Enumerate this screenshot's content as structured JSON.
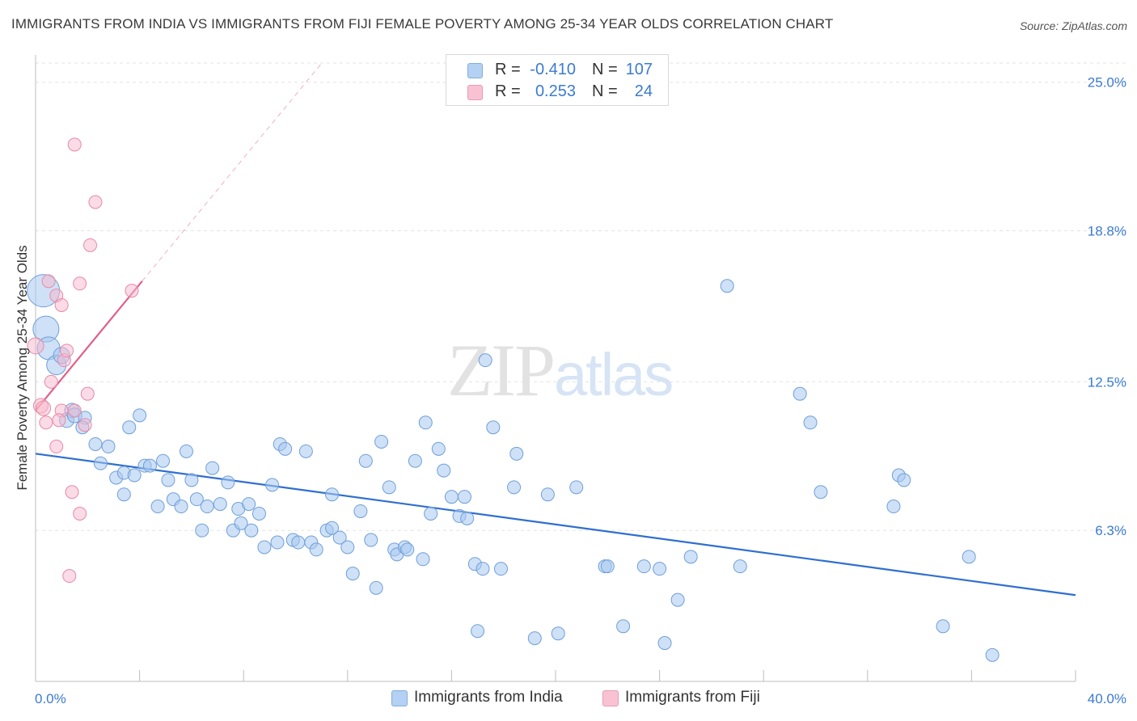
{
  "title": "IMMIGRANTS FROM INDIA VS IMMIGRANTS FROM FIJI FEMALE POVERTY AMONG 25-34 YEAR OLDS CORRELATION CHART",
  "source": "Source: ZipAtlas.com",
  "watermark": {
    "zip": "ZIP",
    "atlas": "atlas"
  },
  "legend": {
    "rows": [
      {
        "r_label": "R =",
        "r_value": "-0.410",
        "n_label": "N =",
        "n_value": "107",
        "color": "#a8c8f0"
      },
      {
        "r_label": "R =",
        "r_value": "0.253",
        "n_label": "N =",
        "n_value": "24",
        "color": "#f7b8cc"
      }
    ]
  },
  "bottom_legend": {
    "india": "Immigrants from India",
    "fiji": "Immigrants from Fiji"
  },
  "colors": {
    "india_fill": "#a8c8f0",
    "india_stroke": "#6f9fd8",
    "india_line": "#2f6fd0",
    "fiji_fill": "#f7b8cc",
    "fiji_stroke": "#e58aa8",
    "fiji_line": "#e0608a",
    "tick_text": "#3b7bd0",
    "grid": "#e3e3e3"
  },
  "chart_data": {
    "type": "scatter",
    "title": "IMMIGRANTS FROM INDIA VS IMMIGRANTS FROM FIJI FEMALE POVERTY AMONG 25-34 YEAR OLDS CORRELATION CHART",
    "xlabel": "",
    "ylabel": "Female Poverty Among 25-34 Year Olds",
    "xlim": [
      0,
      40
    ],
    "ylim": [
      0,
      25
    ],
    "x_tick_labels": [
      "0.0%",
      "40.0%"
    ],
    "y_ticks": [
      6.3,
      12.5,
      18.8,
      25.0
    ],
    "y_tick_labels": [
      "6.3%",
      "12.5%",
      "18.8%",
      "25.0%"
    ],
    "grid": "horizontal dashed",
    "series": [
      {
        "name": "Immigrants from India",
        "trend": {
          "x": [
            0,
            40
          ],
          "y": [
            9.5,
            3.6
          ]
        },
        "points": [
          {
            "x": 0.3,
            "y": 16.3,
            "s": 20
          },
          {
            "x": 0.4,
            "y": 14.7,
            "s": 16
          },
          {
            "x": 0.5,
            "y": 13.9,
            "s": 14
          },
          {
            "x": 0.8,
            "y": 13.2,
            "s": 12
          },
          {
            "x": 1.0,
            "y": 13.6,
            "s": 10
          },
          {
            "x": 1.4,
            "y": 11.3,
            "s": 9
          },
          {
            "x": 1.2,
            "y": 10.9,
            "s": 9
          },
          {
            "x": 1.5,
            "y": 11.1,
            "s": 9
          },
          {
            "x": 1.9,
            "y": 11.0,
            "s": 8
          },
          {
            "x": 1.8,
            "y": 10.6,
            "s": 8
          },
          {
            "x": 2.3,
            "y": 9.9,
            "s": 8
          },
          {
            "x": 2.5,
            "y": 9.1,
            "s": 8
          },
          {
            "x": 2.8,
            "y": 9.8,
            "s": 8
          },
          {
            "x": 3.1,
            "y": 8.5,
            "s": 8
          },
          {
            "x": 3.4,
            "y": 8.7,
            "s": 8
          },
          {
            "x": 3.4,
            "y": 7.8,
            "s": 8
          },
          {
            "x": 3.6,
            "y": 10.6,
            "s": 8
          },
          {
            "x": 3.8,
            "y": 8.6,
            "s": 8
          },
          {
            "x": 4.0,
            "y": 11.1,
            "s": 8
          },
          {
            "x": 4.2,
            "y": 9.0,
            "s": 8
          },
          {
            "x": 4.4,
            "y": 9.0,
            "s": 8
          },
          {
            "x": 4.7,
            "y": 7.3,
            "s": 8
          },
          {
            "x": 4.9,
            "y": 9.2,
            "s": 8
          },
          {
            "x": 5.1,
            "y": 8.4,
            "s": 8
          },
          {
            "x": 5.3,
            "y": 7.6,
            "s": 8
          },
          {
            "x": 5.6,
            "y": 7.3,
            "s": 8
          },
          {
            "x": 5.8,
            "y": 9.6,
            "s": 8
          },
          {
            "x": 6.0,
            "y": 8.4,
            "s": 8
          },
          {
            "x": 6.2,
            "y": 7.6,
            "s": 8
          },
          {
            "x": 6.4,
            "y": 6.3,
            "s": 8
          },
          {
            "x": 6.6,
            "y": 7.3,
            "s": 8
          },
          {
            "x": 6.8,
            "y": 8.9,
            "s": 8
          },
          {
            "x": 7.1,
            "y": 7.4,
            "s": 8
          },
          {
            "x": 7.4,
            "y": 8.3,
            "s": 8
          },
          {
            "x": 7.6,
            "y": 6.3,
            "s": 8
          },
          {
            "x": 7.8,
            "y": 7.2,
            "s": 8
          },
          {
            "x": 7.9,
            "y": 6.6,
            "s": 8
          },
          {
            "x": 8.2,
            "y": 7.4,
            "s": 8
          },
          {
            "x": 8.3,
            "y": 6.3,
            "s": 8
          },
          {
            "x": 8.6,
            "y": 7.0,
            "s": 8
          },
          {
            "x": 8.8,
            "y": 5.6,
            "s": 8
          },
          {
            "x": 9.1,
            "y": 8.2,
            "s": 8
          },
          {
            "x": 9.3,
            "y": 5.8,
            "s": 8
          },
          {
            "x": 9.4,
            "y": 9.9,
            "s": 8
          },
          {
            "x": 9.6,
            "y": 9.7,
            "s": 8
          },
          {
            "x": 9.9,
            "y": 5.9,
            "s": 8
          },
          {
            "x": 10.1,
            "y": 5.8,
            "s": 8
          },
          {
            "x": 10.4,
            "y": 9.6,
            "s": 8
          },
          {
            "x": 10.6,
            "y": 5.8,
            "s": 8
          },
          {
            "x": 10.8,
            "y": 5.5,
            "s": 8
          },
          {
            "x": 11.2,
            "y": 6.3,
            "s": 8
          },
          {
            "x": 11.4,
            "y": 7.8,
            "s": 8
          },
          {
            "x": 11.4,
            "y": 6.4,
            "s": 8
          },
          {
            "x": 11.7,
            "y": 6.0,
            "s": 8
          },
          {
            "x": 12.0,
            "y": 5.6,
            "s": 8
          },
          {
            "x": 12.2,
            "y": 4.5,
            "s": 8
          },
          {
            "x": 12.5,
            "y": 7.1,
            "s": 8
          },
          {
            "x": 12.7,
            "y": 9.2,
            "s": 8
          },
          {
            "x": 12.9,
            "y": 5.9,
            "s": 8
          },
          {
            "x": 13.1,
            "y": 3.9,
            "s": 8
          },
          {
            "x": 13.3,
            "y": 10.0,
            "s": 8
          },
          {
            "x": 13.6,
            "y": 8.1,
            "s": 8
          },
          {
            "x": 13.8,
            "y": 5.5,
            "s": 8
          },
          {
            "x": 13.9,
            "y": 5.3,
            "s": 8
          },
          {
            "x": 14.2,
            "y": 5.6,
            "s": 8
          },
          {
            "x": 14.3,
            "y": 5.5,
            "s": 8
          },
          {
            "x": 14.6,
            "y": 9.2,
            "s": 8
          },
          {
            "x": 14.9,
            "y": 5.1,
            "s": 8
          },
          {
            "x": 15.0,
            "y": 10.8,
            "s": 8
          },
          {
            "x": 15.2,
            "y": 7.0,
            "s": 8
          },
          {
            "x": 15.5,
            "y": 9.7,
            "s": 8
          },
          {
            "x": 15.7,
            "y": 8.8,
            "s": 8
          },
          {
            "x": 16.0,
            "y": 7.7,
            "s": 8
          },
          {
            "x": 16.3,
            "y": 6.9,
            "s": 8
          },
          {
            "x": 16.5,
            "y": 7.7,
            "s": 8
          },
          {
            "x": 16.6,
            "y": 6.8,
            "s": 8
          },
          {
            "x": 16.9,
            "y": 4.9,
            "s": 8
          },
          {
            "x": 17.0,
            "y": 2.1,
            "s": 8
          },
          {
            "x": 17.2,
            "y": 4.7,
            "s": 8
          },
          {
            "x": 17.3,
            "y": 13.4,
            "s": 8
          },
          {
            "x": 17.6,
            "y": 10.6,
            "s": 8
          },
          {
            "x": 17.9,
            "y": 4.7,
            "s": 8
          },
          {
            "x": 18.4,
            "y": 8.1,
            "s": 8
          },
          {
            "x": 18.5,
            "y": 9.5,
            "s": 8
          },
          {
            "x": 19.2,
            "y": 1.8,
            "s": 8
          },
          {
            "x": 19.7,
            "y": 7.8,
            "s": 8
          },
          {
            "x": 20.1,
            "y": 2.0,
            "s": 8
          },
          {
            "x": 20.8,
            "y": 8.1,
            "s": 8
          },
          {
            "x": 21.9,
            "y": 4.8,
            "s": 8
          },
          {
            "x": 22.0,
            "y": 4.8,
            "s": 8
          },
          {
            "x": 22.6,
            "y": 2.3,
            "s": 8
          },
          {
            "x": 23.4,
            "y": 4.8,
            "s": 8
          },
          {
            "x": 24.0,
            "y": 4.7,
            "s": 8
          },
          {
            "x": 24.2,
            "y": 1.6,
            "s": 8
          },
          {
            "x": 24.7,
            "y": 3.4,
            "s": 8
          },
          {
            "x": 25.2,
            "y": 5.2,
            "s": 8
          },
          {
            "x": 26.6,
            "y": 16.5,
            "s": 8
          },
          {
            "x": 27.1,
            "y": 4.8,
            "s": 8
          },
          {
            "x": 29.4,
            "y": 12.0,
            "s": 8
          },
          {
            "x": 29.8,
            "y": 10.8,
            "s": 8
          },
          {
            "x": 30.2,
            "y": 7.9,
            "s": 8
          },
          {
            "x": 33.0,
            "y": 7.3,
            "s": 8
          },
          {
            "x": 33.2,
            "y": 8.6,
            "s": 8
          },
          {
            "x": 33.4,
            "y": 8.4,
            "s": 8
          },
          {
            "x": 34.9,
            "y": 2.3,
            "s": 8
          },
          {
            "x": 35.9,
            "y": 5.2,
            "s": 8
          },
          {
            "x": 36.8,
            "y": 1.1,
            "s": 8
          }
        ]
      },
      {
        "name": "Immigrants from Fiji",
        "trend": {
          "x": [
            0,
            4.1
          ],
          "y": [
            11.3,
            16.7
          ]
        },
        "points": [
          {
            "x": 0.0,
            "y": 14.0,
            "s": 10
          },
          {
            "x": 0.2,
            "y": 11.5,
            "s": 9
          },
          {
            "x": 0.3,
            "y": 11.4,
            "s": 9
          },
          {
            "x": 0.4,
            "y": 10.8,
            "s": 8
          },
          {
            "x": 0.5,
            "y": 16.7,
            "s": 8
          },
          {
            "x": 0.6,
            "y": 12.5,
            "s": 8
          },
          {
            "x": 0.8,
            "y": 16.1,
            "s": 8
          },
          {
            "x": 0.8,
            "y": 9.8,
            "s": 8
          },
          {
            "x": 1.0,
            "y": 15.7,
            "s": 8
          },
          {
            "x": 1.0,
            "y": 11.3,
            "s": 8
          },
          {
            "x": 1.1,
            "y": 13.4,
            "s": 8
          },
          {
            "x": 1.2,
            "y": 13.8,
            "s": 8
          },
          {
            "x": 1.3,
            "y": 4.4,
            "s": 8
          },
          {
            "x": 1.4,
            "y": 7.9,
            "s": 8
          },
          {
            "x": 1.5,
            "y": 11.3,
            "s": 8
          },
          {
            "x": 1.5,
            "y": 22.4,
            "s": 8
          },
          {
            "x": 1.7,
            "y": 16.6,
            "s": 8
          },
          {
            "x": 1.7,
            "y": 7.0,
            "s": 8
          },
          {
            "x": 1.9,
            "y": 10.7,
            "s": 8
          },
          {
            "x": 2.0,
            "y": 12.0,
            "s": 8
          },
          {
            "x": 2.1,
            "y": 18.2,
            "s": 8
          },
          {
            "x": 2.3,
            "y": 20.0,
            "s": 8
          },
          {
            "x": 3.7,
            "y": 16.3,
            "s": 8
          },
          {
            "x": 0.9,
            "y": 10.9,
            "s": 8
          }
        ]
      }
    ]
  }
}
